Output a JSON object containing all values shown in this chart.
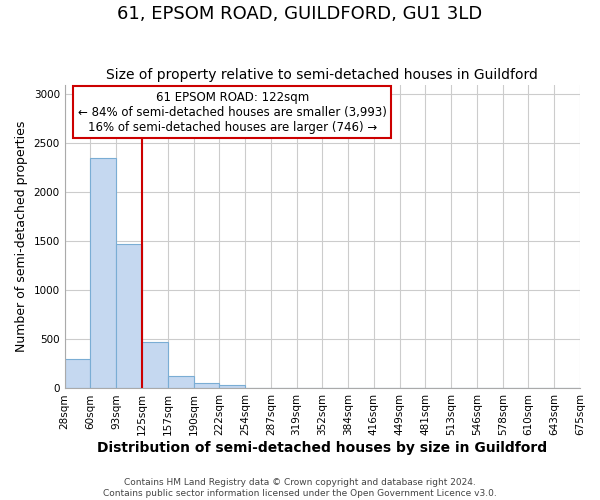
{
  "title": "61, EPSOM ROAD, GUILDFORD, GU1 3LD",
  "subtitle": "Size of property relative to semi-detached houses in Guildford",
  "xlabel": "Distribution of semi-detached houses by size in Guildford",
  "ylabel": "Number of semi-detached properties",
  "bin_labels": [
    "28sqm",
    "60sqm",
    "93sqm",
    "125sqm",
    "157sqm",
    "190sqm",
    "222sqm",
    "254sqm",
    "287sqm",
    "319sqm",
    "352sqm",
    "384sqm",
    "416sqm",
    "449sqm",
    "481sqm",
    "513sqm",
    "546sqm",
    "578sqm",
    "610sqm",
    "643sqm",
    "675sqm"
  ],
  "bar_heights": [
    300,
    2350,
    1470,
    470,
    130,
    55,
    40,
    0,
    0,
    0,
    0,
    0,
    0,
    0,
    0,
    0,
    0,
    0,
    0,
    0
  ],
  "bar_color": "#c5d8f0",
  "bar_edge_color": "#7aadd4",
  "ylim": [
    0,
    3100
  ],
  "yticks": [
    0,
    500,
    1000,
    1500,
    2000,
    2500,
    3000
  ],
  "vline_bin": 3,
  "vline_color": "#cc0000",
  "annotation_line1": "61 EPSOM ROAD: 122sqm",
  "annotation_line2": "← 84% of semi-detached houses are smaller (3,993)",
  "annotation_line3": "16% of semi-detached houses are larger (746) →",
  "annotation_box_color": "#ffffff",
  "annotation_box_edge": "#cc0000",
  "footer_text": "Contains HM Land Registry data © Crown copyright and database right 2024.\nContains public sector information licensed under the Open Government Licence v3.0.",
  "background_color": "#ffffff",
  "grid_color": "#cccccc",
  "title_fontsize": 13,
  "subtitle_fontsize": 10,
  "ylabel_fontsize": 9,
  "xlabel_fontsize": 10,
  "footer_fontsize": 6.5,
  "tick_fontsize": 7.5,
  "annotation_fontsize": 8.5
}
